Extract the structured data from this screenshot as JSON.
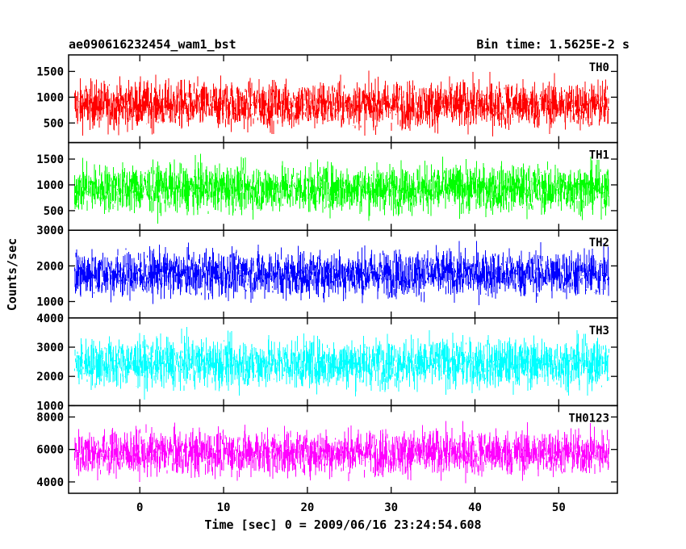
{
  "chart_data": {
    "type": "line",
    "title_left": "ae090616232454_wam1_bst",
    "title_right": "Bin time: 1.5625E-2 s",
    "xlabel": "Time [sec] 0 = 2009/06/16 23:24:54.608",
    "ylabel": "Counts/sec",
    "xlim": [
      -8.5,
      57
    ],
    "x_ticks": [
      {
        "value": 0,
        "label": "0"
      },
      {
        "value": 10,
        "label": "10"
      },
      {
        "value": 20,
        "label": "20"
      },
      {
        "value": 30,
        "label": "30"
      },
      {
        "value": 40,
        "label": "40"
      },
      {
        "value": 50,
        "label": "50"
      }
    ],
    "x_data_range": [
      -7.8,
      56
    ],
    "panels": [
      {
        "label": "TH0",
        "color": "#ff0000",
        "ylim": [
          120,
          1820
        ],
        "y_ticks": [
          {
            "value": 500,
            "label": "500"
          },
          {
            "value": 1000,
            "label": "1000"
          },
          {
            "value": 1500,
            "label": "1500"
          }
        ],
        "signal": {
          "mean": 850,
          "spread": 230,
          "min": 160,
          "max": 1820
        }
      },
      {
        "label": "TH1",
        "color": "#00ff00",
        "ylim": [
          120,
          1820
        ],
        "y_ticks": [
          {
            "value": 500,
            "label": "500"
          },
          {
            "value": 1000,
            "label": "1000"
          },
          {
            "value": 1500,
            "label": "1500"
          }
        ],
        "signal": {
          "mean": 930,
          "spread": 230,
          "min": 200,
          "max": 1820
        }
      },
      {
        "label": "TH2",
        "color": "#0000ff",
        "ylim": [
          540,
          3000
        ],
        "y_ticks": [
          {
            "value": 1000,
            "label": "1000"
          },
          {
            "value": 2000,
            "label": "2000"
          },
          {
            "value": 3000,
            "label": "3000"
          }
        ],
        "signal": {
          "mean": 1780,
          "spread": 330,
          "min": 700,
          "max": 2950
        }
      },
      {
        "label": "TH3",
        "color": "#00ffff",
        "ylim": [
          1000,
          4000
        ],
        "y_ticks": [
          {
            "value": 1000,
            "label": "1000"
          },
          {
            "value": 2000,
            "label": "2000"
          },
          {
            "value": 3000,
            "label": "3000"
          },
          {
            "value": 4000,
            "label": "4000"
          }
        ],
        "signal": {
          "mean": 2450,
          "spread": 420,
          "min": 1100,
          "max": 3950
        }
      },
      {
        "label": "TH0123",
        "color": "#ff00ff",
        "ylim": [
          3300,
          8700
        ],
        "y_ticks": [
          {
            "value": 4000,
            "label": "4000"
          },
          {
            "value": 6000,
            "label": "6000"
          },
          {
            "value": 8000,
            "label": "8000"
          }
        ],
        "signal": {
          "mean": 5800,
          "spread": 700,
          "min": 3400,
          "max": 8650
        }
      }
    ]
  }
}
